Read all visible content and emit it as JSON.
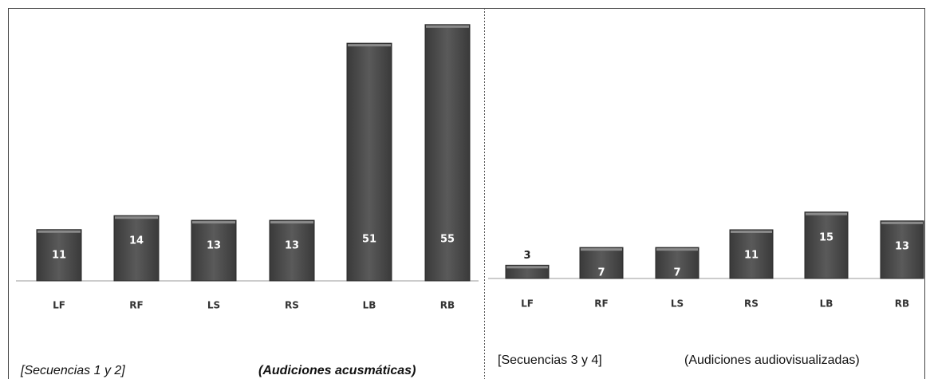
{
  "chart_data": [
    {
      "type": "bar",
      "categories": [
        "LF",
        "RF",
        "LS",
        "RS",
        "LB",
        "RB"
      ],
      "values": [
        11,
        14,
        13,
        13,
        51,
        55
      ],
      "color": "#4a4a4a",
      "caption_left": "[Secuencias 1 y 2]",
      "caption_right": "(Audiciones acusmáticas)"
    },
    {
      "type": "bar",
      "categories": [
        "LF",
        "RF",
        "LS",
        "RS",
        "LB",
        "RB"
      ],
      "values": [
        3,
        7,
        7,
        11,
        15,
        13
      ],
      "color": "#4a4a4a",
      "caption_left": "[Secuencias 3 y 4]",
      "caption_right": "(Audiciones audiovisualizadas)"
    }
  ]
}
